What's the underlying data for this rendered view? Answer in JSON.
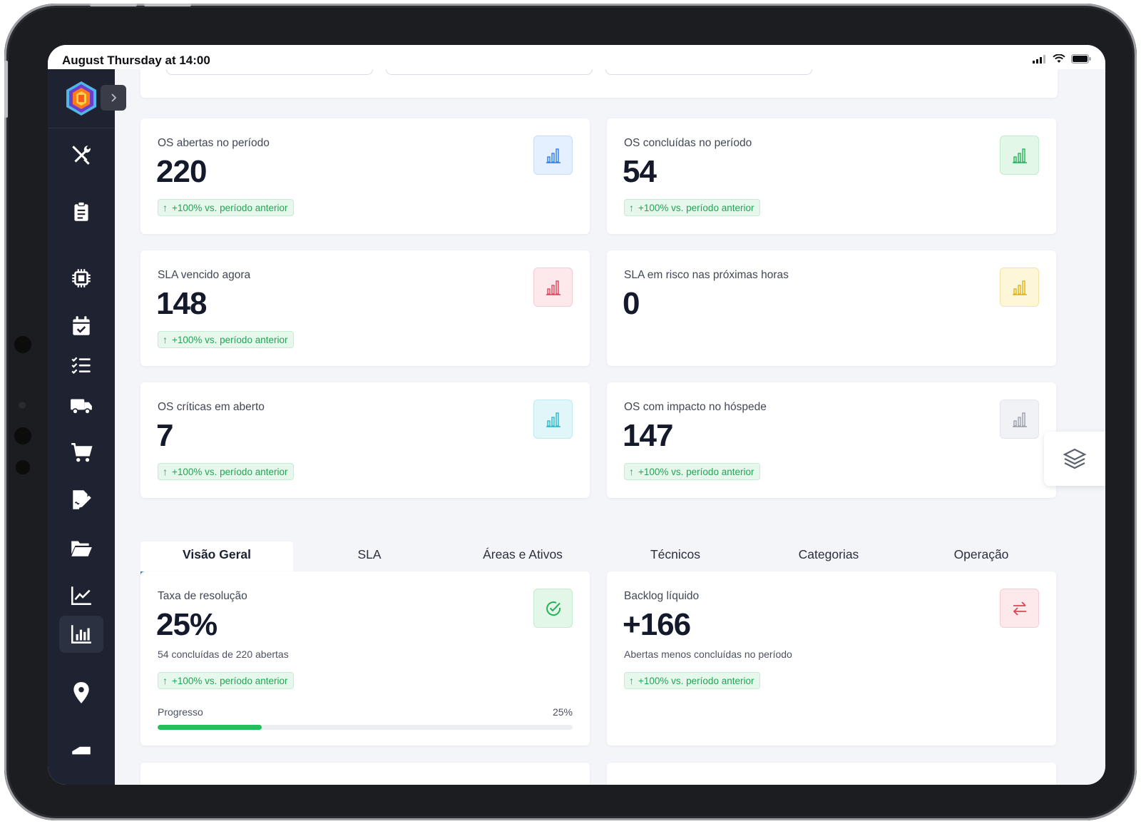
{
  "status_bar": {
    "time": "August Thursday at 14:00"
  },
  "sidebar": {
    "items": [
      {
        "icon": "tools-icon",
        "label": "Ferramentas"
      },
      {
        "icon": "clipboard-icon",
        "label": "Ordens"
      },
      {
        "icon": "chip-icon",
        "label": "Ativos"
      },
      {
        "icon": "calendar-check-icon",
        "label": "Agenda"
      },
      {
        "icon": "checklist-icon",
        "label": "Checklists"
      },
      {
        "icon": "truck-icon",
        "label": "Fornecedores"
      },
      {
        "icon": "cart-icon",
        "label": "Compras"
      },
      {
        "icon": "signature-icon",
        "label": "Contratos"
      },
      {
        "icon": "folder-open-icon",
        "label": "Documentos"
      },
      {
        "icon": "line-chart-icon",
        "label": "Relatórios"
      },
      {
        "icon": "bar-chart-icon",
        "label": "Dashboard"
      },
      {
        "icon": "location-pin-icon",
        "label": "Locais"
      },
      {
        "icon": "tag-icon",
        "label": "Etiquetas"
      }
    ]
  },
  "kpis": {
    "abertas": {
      "title": "OS abertas no período",
      "value": "220",
      "trend": "+100% vs. período anterior",
      "color": "#2f7bea"
    },
    "concluidas": {
      "title": "OS concluídas no período",
      "value": "54",
      "trend": "+100% vs. período anterior",
      "color": "#22b35a"
    },
    "sla_vencido": {
      "title": "SLA vencido agora",
      "value": "148",
      "trend": "+100% vs. período anterior",
      "color": "#e0435a"
    },
    "sla_risco": {
      "title": "SLA em risco nas próximas horas",
      "value": "0",
      "color": "#e0b21a"
    },
    "criticas": {
      "title": "OS críticas em aberto",
      "value": "7",
      "trend": "+100% vs. período anterior",
      "color": "#2bb8cc"
    },
    "impacto": {
      "title": "OS com impacto no hóspede",
      "value": "147",
      "trend": "+100% vs. período anterior",
      "color": "#9aa0aa"
    }
  },
  "tabs": [
    "Visão Geral",
    "SLA",
    "Áreas e Ativos",
    "Técnicos",
    "Categorias",
    "Operação"
  ],
  "overview": {
    "taxa": {
      "title": "Taxa de resolução",
      "value": "25%",
      "subtitle": "54 concluídas de 220 abertas",
      "trend": "+100% vs. período anterior",
      "progress_label": "Progresso",
      "progress_pct": "25%",
      "progress_value": 0.25
    },
    "backlog": {
      "title": "Backlog líquido",
      "value": "+166",
      "subtitle": "Abertas menos concluídas no período",
      "trend": "+100% vs. período anterior"
    }
  }
}
